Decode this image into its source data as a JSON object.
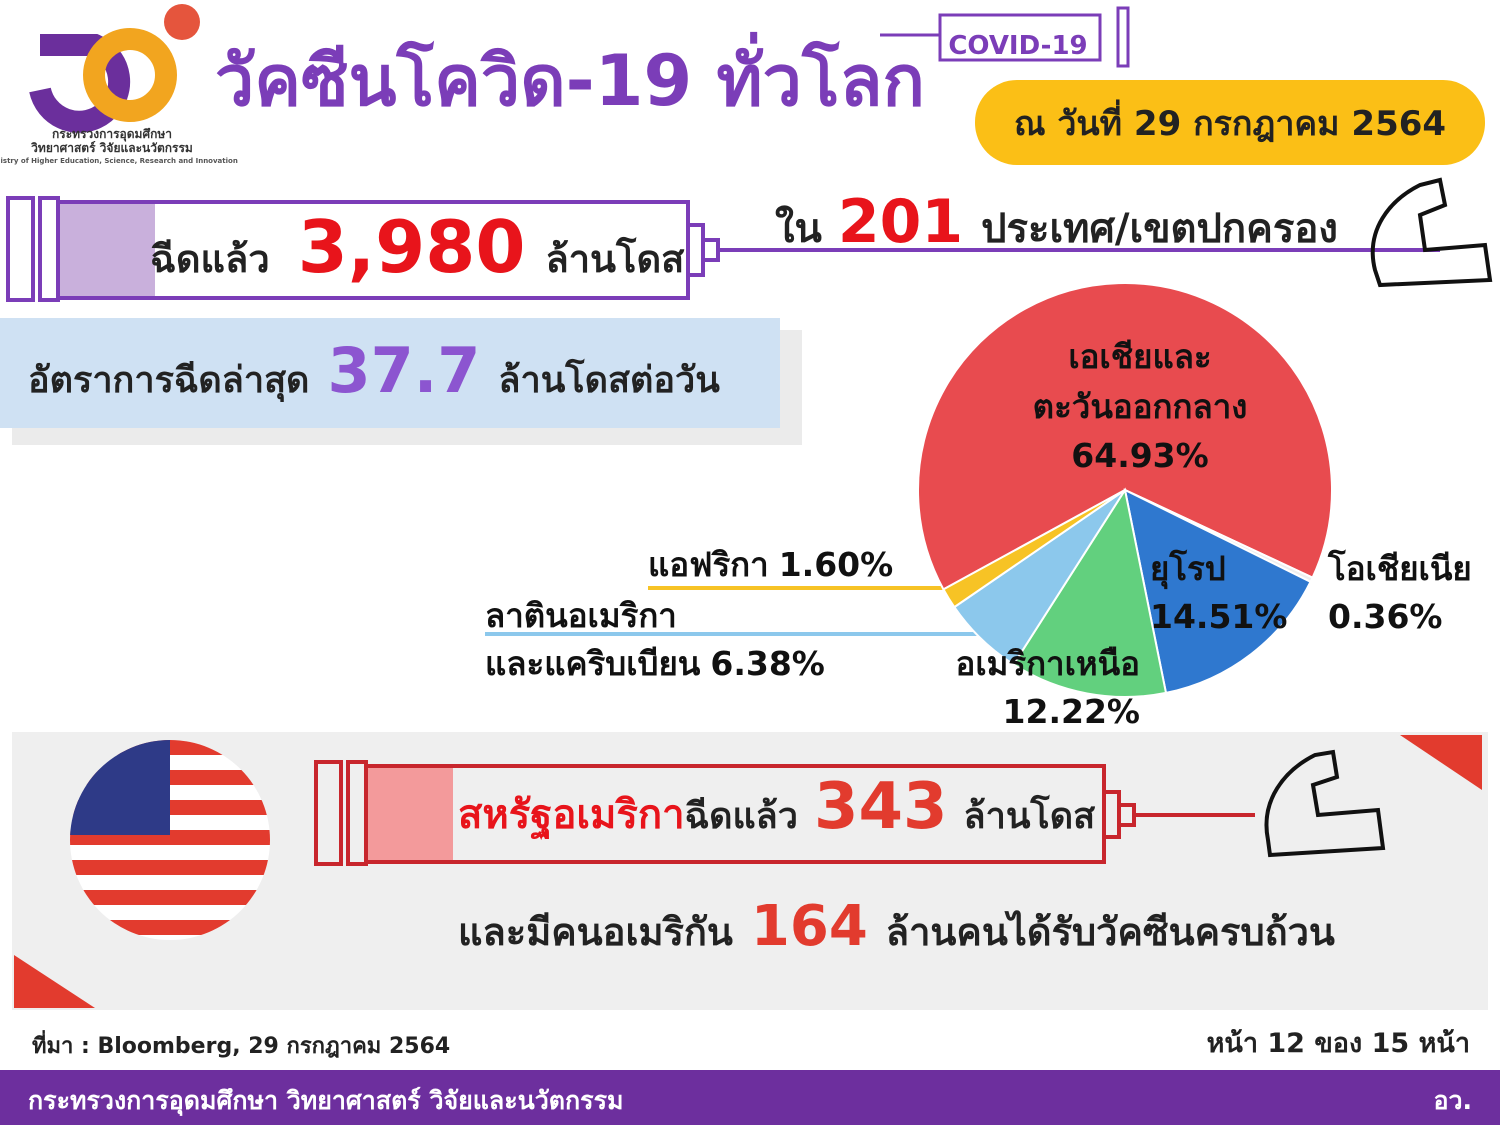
{
  "header": {
    "org_line1": "กระทรวงการอุดมศึกษา",
    "org_line2": "วิทยาศาสตร์ วิจัยและนวัตกรรม",
    "org_en": "Ministry of Higher Education, Science, Research and Innovation",
    "title": "วัคซีนโควิด-19 ทั่วโลก",
    "syringe_label": "COVID-19",
    "date": "ณ วันที่ 29 กรกฎาคม 2564"
  },
  "total": {
    "prefix": "ฉีดแล้ว",
    "value": "3,980",
    "suffix": "ล้านโดส"
  },
  "countries": {
    "prefix": "ใน",
    "value": "201",
    "suffix": "ประเทศ/เขตปกครอง"
  },
  "rate": {
    "prefix": "อัตราการฉีดล่าสุด",
    "value": "37.7",
    "suffix": "ล้านโดสต่อวัน"
  },
  "chart_data": {
    "type": "pie",
    "categories": [
      "เอเชียและ\nตะวันออกกลาง",
      "โอเชียเนีย",
      "ยุโรป",
      "อเมริกาเหนือ",
      "ลาตินอเมริกา\nและแคริบเบียน",
      "แอฟริกา"
    ],
    "values": [
      64.93,
      0.36,
      14.51,
      12.22,
      6.38,
      1.6
    ],
    "value_labels": [
      "64.93%",
      "0.36%",
      "14.51%",
      "12.22%",
      "6.38%",
      "1.60%"
    ],
    "colors": [
      "#e84b4f",
      "#eeeeee",
      "#2f78cf",
      "#62d07e",
      "#8cc8ec",
      "#f7c325"
    ]
  },
  "usa": {
    "name": "สหรัฐอเมริกา",
    "prefix": "ฉีดแล้ว",
    "value": "343",
    "suffix": "ล้านโดส",
    "line2_prefix": "และมีคนอเมริกัน",
    "line2_value": "164",
    "line2_suffix": "ล้านคนได้รับวัคซีนครบถ้วน"
  },
  "footer": {
    "source": "ที่มา : Bloomberg, 29 กรกฎาคม 2564",
    "page": "หน้า 12 ของ 15 หน้า",
    "ministry": "กระทรวงการอุดมศึกษา วิทยาศาสตร์ วิจัยและนวัตกรรม",
    "short": "อว."
  }
}
